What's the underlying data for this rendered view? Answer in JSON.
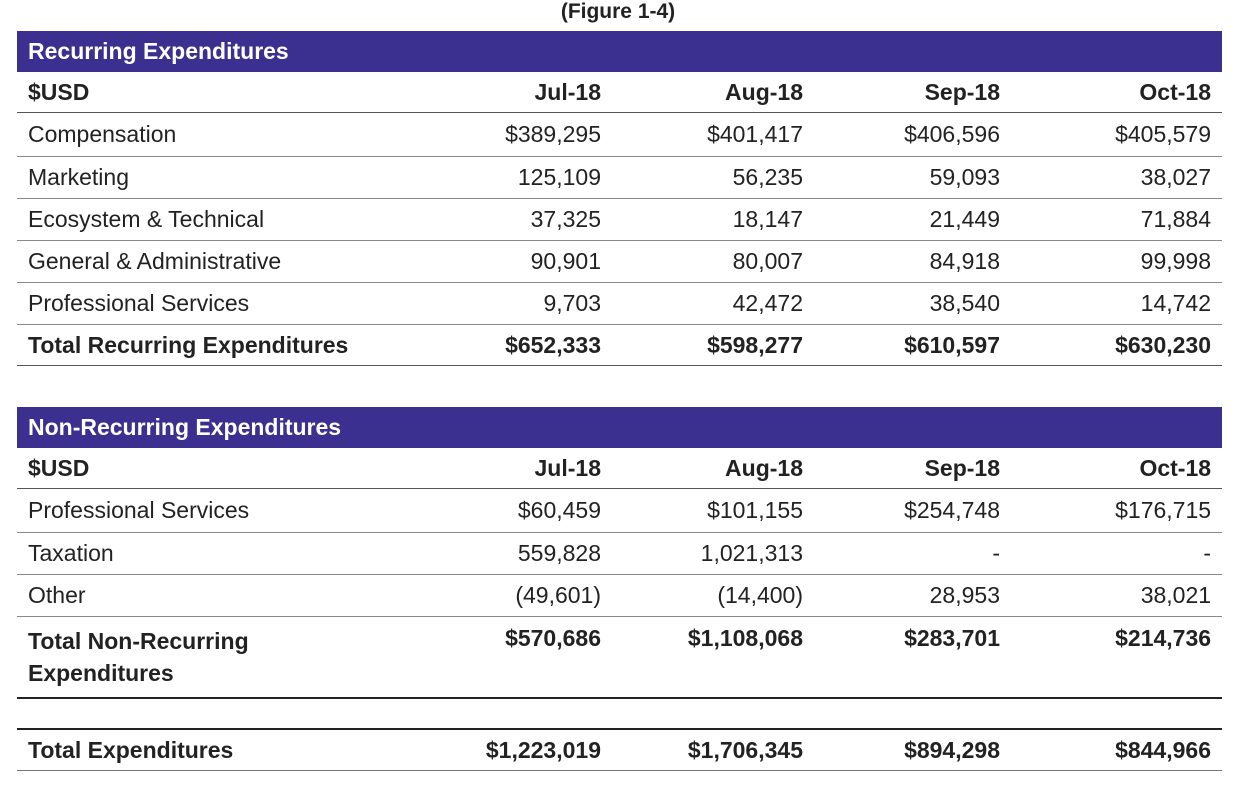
{
  "caption": "(Figure 1-4)",
  "recurring": {
    "title": "Recurring Expenditures",
    "headers": [
      "$USD",
      "Jul-18",
      "Aug-18",
      "Sep-18",
      "Oct-18"
    ],
    "rows": [
      {
        "label": "Compensation",
        "values": [
          "$389,295",
          "$401,417",
          "$406,596",
          "$405,579"
        ]
      },
      {
        "label": "Marketing",
        "values": [
          "125,109",
          "56,235",
          "59,093",
          "38,027"
        ]
      },
      {
        "label": "Ecosystem & Technical",
        "values": [
          "37,325",
          "18,147",
          "21,449",
          "71,884"
        ]
      },
      {
        "label": "General & Administrative",
        "values": [
          "90,901",
          "80,007",
          "84,918",
          "99,998"
        ]
      },
      {
        "label": "Professional Services",
        "values": [
          "9,703",
          "42,472",
          "38,540",
          "14,742"
        ]
      }
    ],
    "total": {
      "label": "Total Recurring Expenditures",
      "values": [
        "$652,333",
        "$598,277",
        "$610,597",
        "$630,230"
      ]
    }
  },
  "nonrecurring": {
    "title": "Non-Recurring Expenditures",
    "headers": [
      "$USD",
      "Jul-18",
      "Aug-18",
      "Sep-18",
      "Oct-18"
    ],
    "rows": [
      {
        "label": "Professional Services",
        "values": [
          "$60,459",
          "$101,155",
          "$254,748",
          "$176,715"
        ]
      },
      {
        "label": "Taxation",
        "values": [
          "559,828",
          "1,021,313",
          "-",
          "-"
        ]
      },
      {
        "label": "Other",
        "values": [
          "(49,601)",
          "(14,400)",
          "28,953",
          "38,021"
        ]
      }
    ],
    "total": {
      "label_line1": "Total Non-Recurring",
      "label_line2": "Expenditures",
      "values": [
        "$570,686",
        "$1,108,068",
        "$283,701",
        "$214,736"
      ]
    }
  },
  "grand_total": {
    "label": "Total Expenditures",
    "values": [
      "$1,223,019",
      "$1,706,345",
      "$894,298",
      "$844,966"
    ]
  },
  "colors": {
    "banner": "#3b2f8f",
    "banner_text": "#ffffff"
  }
}
